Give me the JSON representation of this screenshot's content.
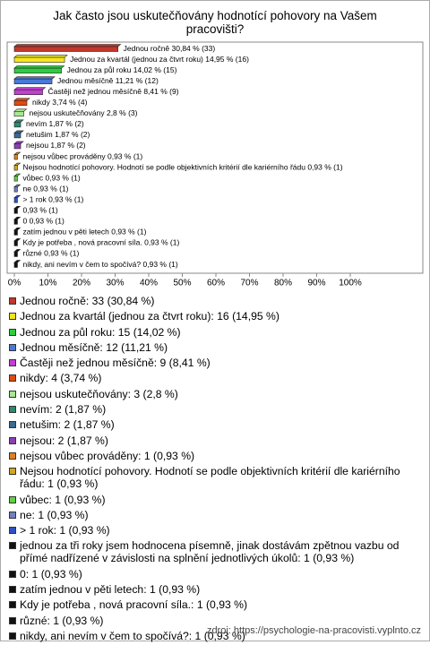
{
  "chart_data": {
    "type": "bar",
    "orientation": "horizontal",
    "title": "Jak často jsou uskutečňovány hodnotící pohovory na Vašem pracovišti?",
    "values": [
      30.84,
      14.95,
      14.02,
      11.21,
      8.41,
      3.74,
      2.8,
      1.87,
      1.87,
      1.87,
      0.93,
      0.93,
      0.93,
      0.93,
      0.93,
      0.93,
      0.93,
      0.93,
      0.93,
      0.93,
      0.93
    ],
    "value_labels": [
      "Jednou ročně 30,84 % (33)",
      "Jednou za kvartál (jednou za čtvrt roku) 14,95 % (16)",
      "Jednou za půl roku 14,02 % (15)",
      "Jednou měsíčně 11,21 % (12)",
      "Častěji než jednou měsíčně 8,41 % (9)",
      "nikdy 3,74 % (4)",
      "nejsou uskutečňovány 2,8 % (3)",
      "nevím 1,87 % (2)",
      "netušim 1,87 % (2)",
      "nejsou 1,87 % (2)",
      "nejsou vůbec prováděny 0,93 % (1)",
      "Nejsou hodnotící pohovory. Hodnotí se podle objektivních kritérií dle kariérního řádu 0,93 % (1)",
      "vůbec 0,93 % (1)",
      "ne 0,93 % (1)",
      "> 1 rok 0,93 % (1)",
      "0,93 % (1)",
      "0 0,93 % (1)",
      "zatím jednou v pěti letech 0,93 % (1)",
      "Kdy je potřeba , nová pracovní síla. 0,93 % (1)",
      "různé 0,93 % (1)",
      "nikdy, ani nevím v čem to spočívá? 0,93 % (1)"
    ],
    "legend_labels": [
      "Jednou ročně: 33 (30,84 %)",
      "Jednou za kvartál (jednou za čtvrt roku): 16 (14,95 %)",
      "Jednou za půl roku: 15 (14,02 %)",
      "Jednou měsíčně: 12 (11,21 %)",
      "Častěji než jednou měsíčně: 9 (8,41 %)",
      "nikdy: 4 (3,74 %)",
      "nejsou uskutečňovány: 3 (2,8 %)",
      "nevím: 2 (1,87 %)",
      "netušim: 2 (1,87 %)",
      "nejsou: 2 (1,87 %)",
      "nejsou vůbec prováděny: 1 (0,93 %)",
      "Nejsou hodnotící pohovory. Hodnotí se podle objektivních kritérií dle kariérního řádu: 1 (0,93 %)",
      "vůbec: 1 (0,93 %)",
      "ne: 1 (0,93 %)",
      "> 1 rok: 1 (0,93 %)",
      "jednou za tři roky jsem hodnocena písemně, jinak dostávám zpětnou vazbu od přímé nadřízené v závislosti na splnění jednotlivých úkolů: 1 (0,93 %)",
      "0: 1 (0,93 %)",
      "zatím jednou v pěti letech: 1 (0,93 %)",
      "Kdy je potřeba , nová pracovní síla.: 1 (0,93 %)",
      "různé: 1 (0,93 %)",
      "nikdy, ani nevím v čem to spočívá?: 1 (0,93 %)"
    ],
    "colors": [
      "#c0392b",
      "#f5e61c",
      "#2ecc40",
      "#4a78d8",
      "#c040d0",
      "#e04a10",
      "#a8e890",
      "#2a8a70",
      "#3a6a90",
      "#8a40b0",
      "#e08020",
      "#d0a820",
      "#60d040",
      "#7080c0",
      "#3050c0",
      "#111111",
      "#111111",
      "#111111",
      "#111111",
      "#111111",
      "#111111"
    ],
    "xlim": [
      0,
      100
    ],
    "xticks": [
      {
        "value": 0,
        "label": "0%"
      },
      {
        "value": 10,
        "label": "10%"
      },
      {
        "value": 20,
        "label": "20%"
      },
      {
        "value": 30,
        "label": "30%"
      },
      {
        "value": 40,
        "label": "40%"
      },
      {
        "value": 50,
        "label": "50%"
      },
      {
        "value": 60,
        "label": "60%"
      },
      {
        "value": 70,
        "label": "70%"
      },
      {
        "value": 80,
        "label": "80%"
      },
      {
        "value": 90,
        "label": "90%"
      },
      {
        "value": 100,
        "label": "100%"
      }
    ],
    "grid": false,
    "source": "zdroj: https://psychologie-na-pracovisti.vyplnto.cz"
  }
}
